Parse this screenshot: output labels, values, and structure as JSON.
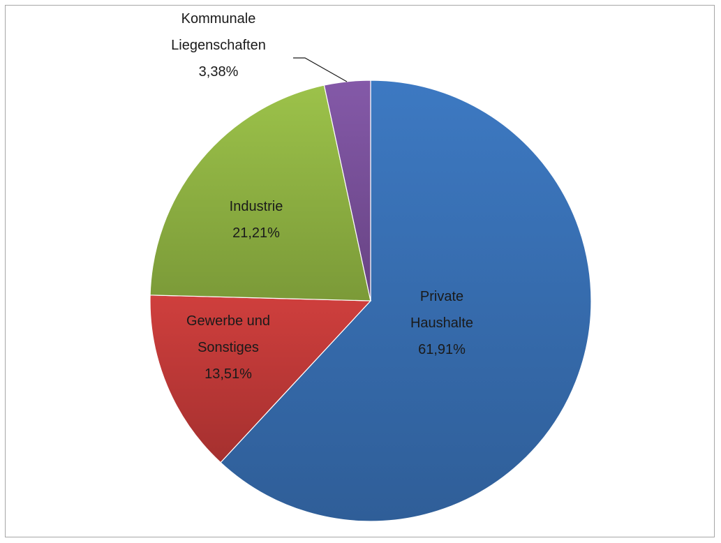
{
  "chart_data": {
    "type": "pie",
    "title": "",
    "slices": [
      {
        "label_lines": [
          "Private",
          "Haushalte"
        ],
        "pct_text": "61,91%",
        "value": 61.91,
        "color": "#3d79c2",
        "color_dark": "#2f5e98"
      },
      {
        "label_lines": [
          "Gewerbe und",
          "Sonstiges"
        ],
        "pct_text": "13,51%",
        "value": 13.51,
        "color": "#cf3f3d",
        "color_dark": "#a5302f"
      },
      {
        "label_lines": [
          "Industrie"
        ],
        "pct_text": "21,21%",
        "value": 21.21,
        "color": "#9cc24a",
        "color_dark": "#7b9a38"
      },
      {
        "label_lines": [
          "Kommunale",
          "Liegenschaften"
        ],
        "pct_text": "3,38%",
        "value": 3.38,
        "color": "#8459a8",
        "color_dark": "#674383"
      }
    ],
    "start_angle": "12 o'clock",
    "direction": "clockwise",
    "legend": "none",
    "border_color": "#a6a6a6"
  }
}
